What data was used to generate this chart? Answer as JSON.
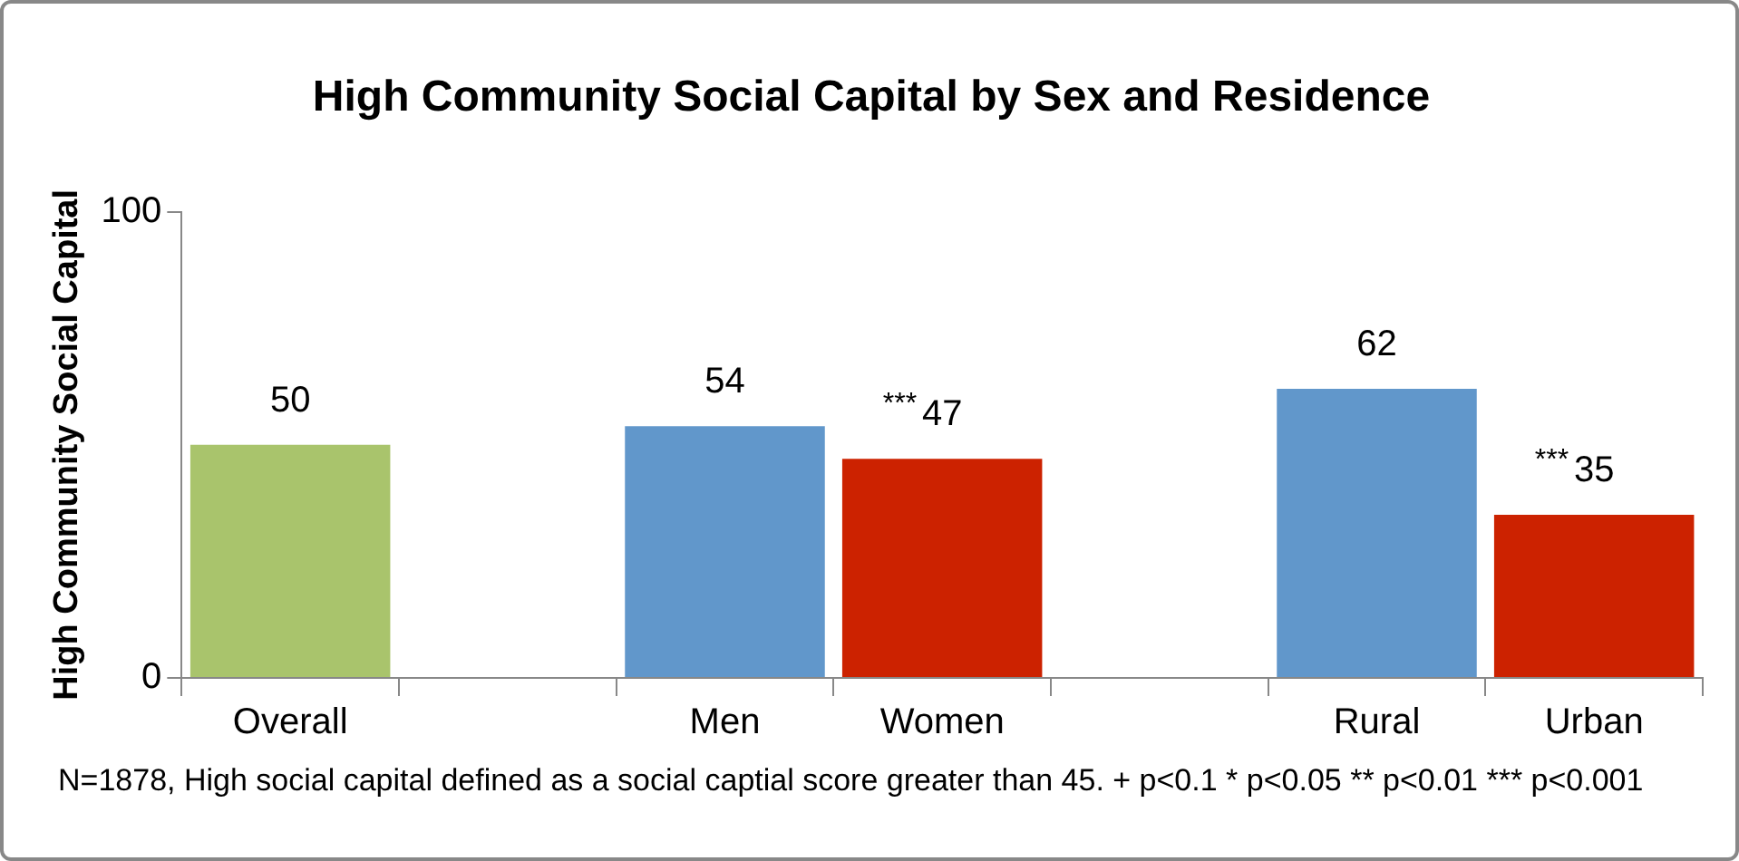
{
  "chart_data": {
    "type": "bar",
    "title": "High Community Social Capital by Sex and Residence",
    "ylabel": "High Community Social Capital",
    "categories": [
      "Overall",
      null,
      "Men",
      "Women",
      null,
      "Rural",
      "Urban"
    ],
    "values": [
      50,
      null,
      54,
      47,
      null,
      62,
      35
    ],
    "colors": [
      "#a9c46c",
      "#a9c46c",
      "#6197cb",
      "#cc2200",
      "#cc2200",
      "#6197cb",
      "#cc2200"
    ],
    "ylim": [
      0,
      100
    ],
    "yticks": [
      0,
      100
    ],
    "grid": false,
    "legend": false,
    "data_labels": true,
    "annotations": [
      {
        "text": "***",
        "x": "Women",
        "y": 47
      },
      {
        "text": "***",
        "x": "Urban",
        "y": 35
      },
      "N=1878, High social capital defined as a social captial score greater than 45. + p<0.1 * p<0.05 ** p<0.01 *** p<0.001"
    ]
  }
}
